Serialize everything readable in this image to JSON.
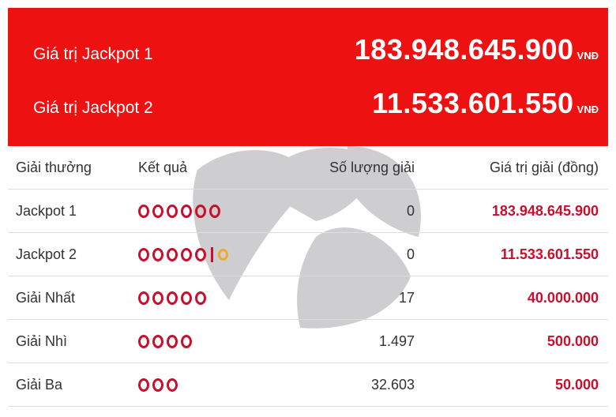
{
  "banner": {
    "jackpot1": {
      "label": "Giá trị Jackpot 1",
      "value": "183.948.645.900",
      "currency": "VNĐ"
    },
    "jackpot2": {
      "label": "Giá trị Jackpot 2",
      "value": "11.533.601.550",
      "currency": "VNĐ"
    }
  },
  "table": {
    "headers": [
      "Giải thưởng",
      "Kết quả",
      "Số lượng giải",
      "Giá trị giải (đồng)"
    ],
    "rows": [
      {
        "prize": "Jackpot 1",
        "balls": 6,
        "special": false,
        "count": "0",
        "value": "183.948.645.900"
      },
      {
        "prize": "Jackpot 2",
        "balls": 5,
        "special": true,
        "count": "0",
        "value": "11.533.601.550"
      },
      {
        "prize": "Giải Nhất",
        "balls": 5,
        "special": false,
        "count": "17",
        "value": "40.000.000"
      },
      {
        "prize": "Giải Nhì",
        "balls": 4,
        "special": false,
        "count": "1.497",
        "value": "500.000"
      },
      {
        "prize": "Giải Ba",
        "balls": 3,
        "special": false,
        "count": "32.603",
        "value": "50.000"
      }
    ]
  },
  "colors": {
    "banner": "#ee1111",
    "ball": "#c8102e",
    "special_ball": "#f0a830",
    "watermark": "#cccccc"
  }
}
